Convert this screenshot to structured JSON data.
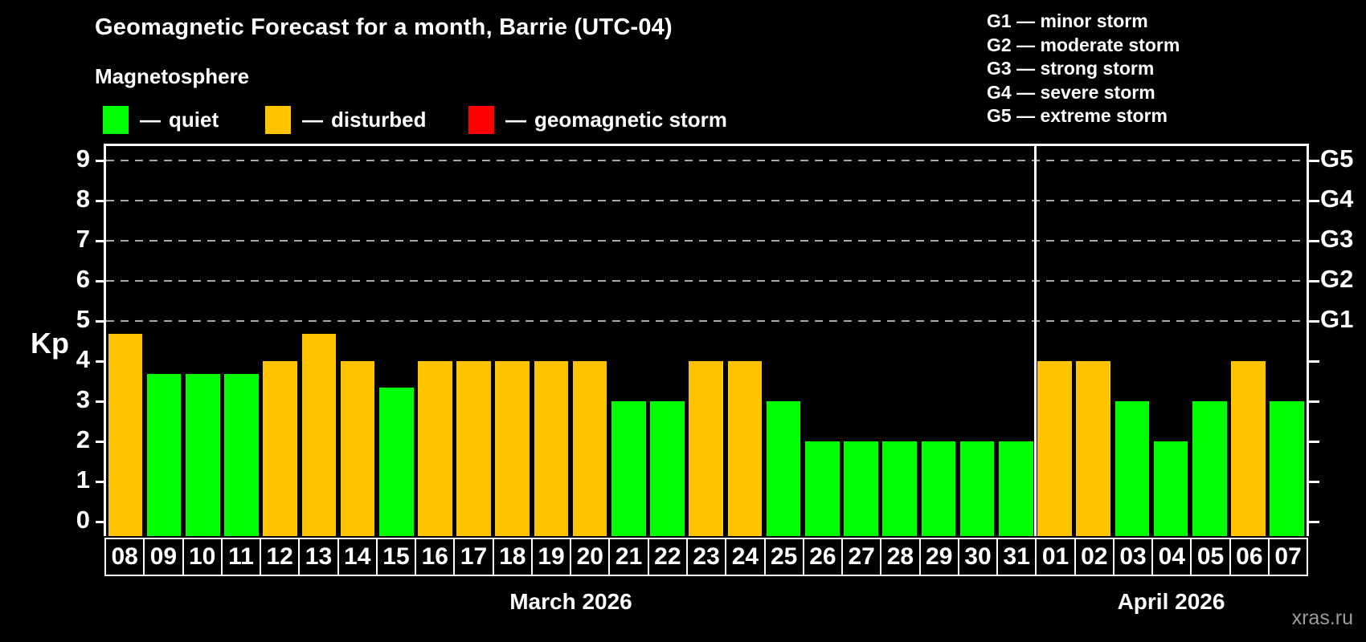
{
  "title": "Geomagnetic Forecast for a month, Barrie (UTC-04)",
  "subtitle": "Magnetosphere",
  "watermark": "xras.ru",
  "dash": "—",
  "colors": {
    "quiet": "#00ff00",
    "disturbed": "#ffc300",
    "storm": "#ff0000",
    "axis": "#ffffff",
    "grid": "#a8a8a8",
    "text": "#ffffff",
    "watermark": "#9c9c9c",
    "background": "#000000"
  },
  "legend": [
    {
      "status": "quiet",
      "label": "quiet",
      "color": "#00ff00"
    },
    {
      "status": "disturbed",
      "label": "disturbed",
      "color": "#ffc300"
    },
    {
      "status": "storm",
      "label": "geomagnetic storm",
      "color": "#ff0000"
    }
  ],
  "g_scale_legend": [
    {
      "code": "G1",
      "label": "minor storm"
    },
    {
      "code": "G2",
      "label": "moderate storm"
    },
    {
      "code": "G3",
      "label": "strong storm"
    },
    {
      "code": "G4",
      "label": "severe storm"
    },
    {
      "code": "G5",
      "label": "extreme storm"
    }
  ],
  "chart_data": {
    "type": "bar",
    "title": "Geomagnetic Forecast for a month, Barrie (UTC-04)",
    "ylabel": "Kp",
    "ylim": [
      0,
      9.4
    ],
    "yticks": [
      0,
      1,
      2,
      3,
      4,
      5,
      6,
      7,
      8,
      9
    ],
    "gridlines": [
      5,
      6,
      7,
      8,
      9
    ],
    "grid_style": "dashed",
    "legend_position": "top-left",
    "right_axis": [
      {
        "value": 5,
        "label": "G1"
      },
      {
        "value": 6,
        "label": "G2"
      },
      {
        "value": 7,
        "label": "G3"
      },
      {
        "value": 8,
        "label": "G4"
      },
      {
        "value": 9,
        "label": "G5"
      }
    ],
    "months": [
      {
        "label": "March 2026",
        "days": [
          {
            "day": "08",
            "kp": 4.67,
            "status": "disturbed"
          },
          {
            "day": "09",
            "kp": 3.67,
            "status": "quiet"
          },
          {
            "day": "10",
            "kp": 3.67,
            "status": "quiet"
          },
          {
            "day": "11",
            "kp": 3.67,
            "status": "quiet"
          },
          {
            "day": "12",
            "kp": 4,
            "status": "disturbed"
          },
          {
            "day": "13",
            "kp": 4.67,
            "status": "disturbed"
          },
          {
            "day": "14",
            "kp": 4,
            "status": "disturbed"
          },
          {
            "day": "15",
            "kp": 3.33,
            "status": "quiet"
          },
          {
            "day": "16",
            "kp": 4,
            "status": "disturbed"
          },
          {
            "day": "17",
            "kp": 4,
            "status": "disturbed"
          },
          {
            "day": "18",
            "kp": 4,
            "status": "disturbed"
          },
          {
            "day": "19",
            "kp": 4,
            "status": "disturbed"
          },
          {
            "day": "20",
            "kp": 4,
            "status": "disturbed"
          },
          {
            "day": "21",
            "kp": 3,
            "status": "quiet"
          },
          {
            "day": "22",
            "kp": 3,
            "status": "quiet"
          },
          {
            "day": "23",
            "kp": 4,
            "status": "disturbed"
          },
          {
            "day": "24",
            "kp": 4,
            "status": "disturbed"
          },
          {
            "day": "25",
            "kp": 3,
            "status": "quiet"
          },
          {
            "day": "26",
            "kp": 2,
            "status": "quiet"
          },
          {
            "day": "27",
            "kp": 2,
            "status": "quiet"
          },
          {
            "day": "28",
            "kp": 2,
            "status": "quiet"
          },
          {
            "day": "29",
            "kp": 2,
            "status": "quiet"
          },
          {
            "day": "30",
            "kp": 2,
            "status": "quiet"
          },
          {
            "day": "31",
            "kp": 2,
            "status": "quiet"
          }
        ]
      },
      {
        "label": "April 2026",
        "days": [
          {
            "day": "01",
            "kp": 4,
            "status": "disturbed"
          },
          {
            "day": "02",
            "kp": 4,
            "status": "disturbed"
          },
          {
            "day": "03",
            "kp": 3,
            "status": "quiet"
          },
          {
            "day": "04",
            "kp": 2,
            "status": "quiet"
          },
          {
            "day": "05",
            "kp": 3,
            "status": "quiet"
          },
          {
            "day": "06",
            "kp": 4,
            "status": "disturbed"
          },
          {
            "day": "07",
            "kp": 3,
            "status": "quiet"
          }
        ]
      }
    ]
  }
}
